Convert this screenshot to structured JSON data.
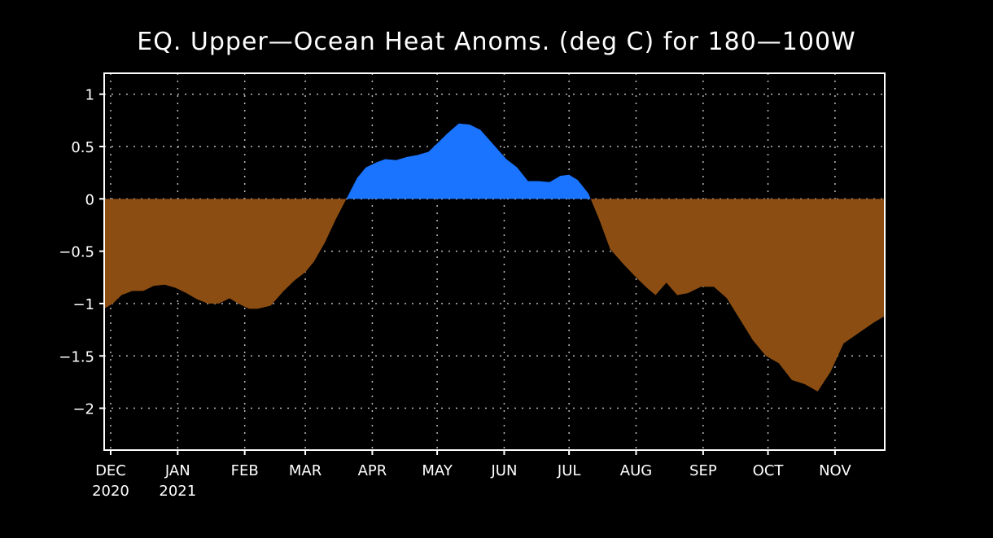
{
  "chart_data": {
    "type": "area",
    "title": "EQ. Upper-Ocean Heat Anoms. (deg C) for 180-100W",
    "xlabel": "",
    "ylabel": "",
    "ylim": [
      -2.4,
      1.2
    ],
    "yticks": [
      1,
      0.5,
      0,
      -0.5,
      -1,
      -1.5,
      -2
    ],
    "ytick_labels": [
      "1",
      "0.5",
      "0",
      "−0.5",
      "−1",
      "−1.5",
      "−2"
    ],
    "xlim": [
      "2020-11-28",
      "2021-11-24"
    ],
    "xticks": [
      {
        "date": "2020-12-01",
        "month": "DEC",
        "year": "2020"
      },
      {
        "date": "2021-01-01",
        "month": "JAN",
        "year": "2021"
      },
      {
        "date": "2021-02-01",
        "month": "FEB",
        "year": ""
      },
      {
        "date": "2021-03-01",
        "month": "MAR",
        "year": ""
      },
      {
        "date": "2021-04-01",
        "month": "APR",
        "year": ""
      },
      {
        "date": "2021-05-01",
        "month": "MAY",
        "year": ""
      },
      {
        "date": "2021-06-01",
        "month": "JUN",
        "year": ""
      },
      {
        "date": "2021-07-01",
        "month": "JUL",
        "year": ""
      },
      {
        "date": "2021-08-01",
        "month": "AUG",
        "year": ""
      },
      {
        "date": "2021-09-01",
        "month": "SEP",
        "year": ""
      },
      {
        "date": "2021-10-01",
        "month": "OCT",
        "year": ""
      },
      {
        "date": "2021-11-01",
        "month": "NOV",
        "year": ""
      }
    ],
    "grid": true,
    "colors": {
      "positive": "#1a74ff",
      "negative": "#8b4d12",
      "axes": "#ffffff",
      "grid": "#bbbbbb",
      "background": "#000000"
    },
    "series": [
      {
        "x": [
          "2020-11-28",
          "2020-12-02",
          "2020-12-06",
          "2020-12-11",
          "2020-12-16",
          "2020-12-21",
          "2020-12-26",
          "2020-12-31",
          "2021-01-05",
          "2021-01-10",
          "2021-01-15",
          "2021-01-20",
          "2021-01-25",
          "2021-01-29",
          "2021-02-03",
          "2021-02-07",
          "2021-02-13",
          "2021-02-19",
          "2021-02-24",
          "2021-03-01",
          "2021-03-05",
          "2021-03-10",
          "2021-03-15",
          "2021-03-20",
          "2021-03-25",
          "2021-03-29",
          "2021-04-03",
          "2021-04-07",
          "2021-04-12",
          "2021-04-17",
          "2021-04-22",
          "2021-04-27",
          "2021-05-02",
          "2021-05-06",
          "2021-05-11",
          "2021-05-16",
          "2021-05-21",
          "2021-05-27",
          "2021-06-02",
          "2021-06-07",
          "2021-06-12",
          "2021-06-17",
          "2021-06-22",
          "2021-06-27",
          "2021-07-01",
          "2021-07-05",
          "2021-07-10",
          "2021-07-15",
          "2021-07-20",
          "2021-07-26",
          "2021-08-01",
          "2021-08-06",
          "2021-08-10",
          "2021-08-15",
          "2021-08-20",
          "2021-08-25",
          "2021-08-31",
          "2021-09-06",
          "2021-09-12",
          "2021-09-18",
          "2021-09-24",
          "2021-09-30",
          "2021-10-06",
          "2021-10-12",
          "2021-10-18",
          "2021-10-24",
          "2021-10-30",
          "2021-11-05",
          "2021-11-12",
          "2021-11-19",
          "2021-11-24"
        ],
        "y": [
          -1.05,
          -1.0,
          -0.92,
          -0.88,
          -0.88,
          -0.83,
          -0.82,
          -0.85,
          -0.9,
          -0.96,
          -1.0,
          -1.0,
          -0.95,
          -1.0,
          -1.05,
          -1.05,
          -1.02,
          -0.88,
          -0.78,
          -0.7,
          -0.6,
          -0.42,
          -0.2,
          0.0,
          0.2,
          0.3,
          0.35,
          0.38,
          0.37,
          0.4,
          0.42,
          0.45,
          0.55,
          0.63,
          0.72,
          0.71,
          0.66,
          0.52,
          0.38,
          0.3,
          0.17,
          0.17,
          0.16,
          0.22,
          0.23,
          0.18,
          0.05,
          -0.2,
          -0.48,
          -0.62,
          -0.75,
          -0.85,
          -0.92,
          -0.8,
          -0.92,
          -0.9,
          -0.84,
          -0.84,
          -0.95,
          -1.15,
          -1.35,
          -1.5,
          -1.57,
          -1.73,
          -1.77,
          -1.84,
          -1.65,
          -1.38,
          -1.28,
          -1.18,
          -1.12
        ]
      }
    ]
  }
}
